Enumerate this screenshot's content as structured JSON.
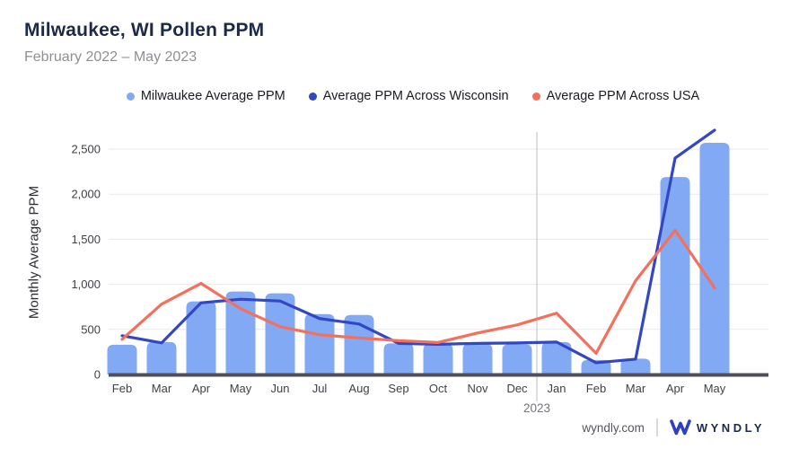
{
  "header": {
    "title": "Milwaukee, WI Pollen PPM",
    "subtitle": "February 2022 – May 2023"
  },
  "legend": {
    "items": [
      {
        "label": "Milwaukee Average PPM",
        "color": "#82a9f3"
      },
      {
        "label": "Average PPM Across Wisconsin",
        "color": "#3247c1"
      },
      {
        "label": "Average PPM Across USA",
        "color": "#f4705c"
      }
    ]
  },
  "chart_data": {
    "type": "bar",
    "title": "Milwaukee, WI Pollen PPM",
    "xlabel": "",
    "ylabel": "Monthly Average PPM",
    "categories": [
      "Feb",
      "Mar",
      "Apr",
      "May",
      "Jun",
      "Jul",
      "Aug",
      "Sep",
      "Oct",
      "Nov",
      "Dec",
      "Jan",
      "Feb",
      "Mar",
      "Apr",
      "May"
    ],
    "year_divider_after_index": 10,
    "year_label": "2023",
    "ylim": [
      0,
      2720
    ],
    "yticks": [
      0,
      500,
      1000,
      1500,
      2000,
      2500
    ],
    "ytick_labels": [
      "0",
      "500",
      "1,000",
      "1,500",
      "2,000",
      "2,500"
    ],
    "grid": true,
    "legend_position": "top",
    "series": [
      {
        "name": "Milwaukee Average PPM",
        "type": "bar",
        "color": "#82a9f3",
        "values": [
          330,
          360,
          810,
          920,
          900,
          670,
          660,
          345,
          340,
          340,
          335,
          360,
          160,
          175,
          2190,
          2570
        ]
      },
      {
        "name": "Average PPM Across Wisconsin",
        "type": "line",
        "color": "#3247c1",
        "values": [
          430,
          350,
          795,
          835,
          815,
          620,
          560,
          345,
          335,
          345,
          350,
          360,
          130,
          170,
          2400,
          2710
        ]
      },
      {
        "name": "Average PPM Across USA",
        "type": "line",
        "color": "#f4705c",
        "values": [
          390,
          780,
          1010,
          730,
          530,
          440,
          405,
          375,
          355,
          460,
          550,
          680,
          235,
          1040,
          1600,
          960
        ]
      }
    ]
  },
  "footer": {
    "site": "wyndly.com",
    "brand": "WYNDLY"
  },
  "colors": {
    "title": "#1c2947",
    "subtitle": "#8e8e96",
    "axis_line": "#4f4f57",
    "gridline": "#e9e9ec",
    "year_divider": "#c9c9ce",
    "tick_text": "#3f3f46",
    "year_text": "#74747c",
    "logo_blue": "#2e3fc0"
  }
}
